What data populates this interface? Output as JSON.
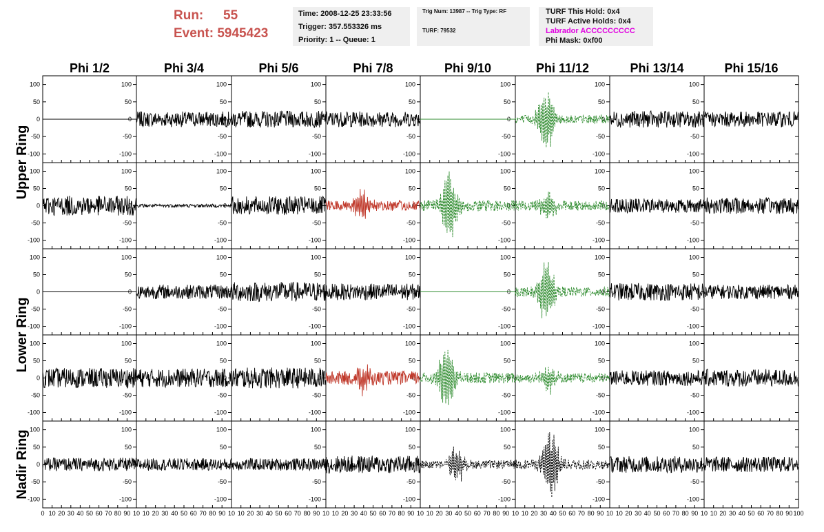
{
  "run": {
    "run_label": "Run:",
    "run_value": "55",
    "event_label": "Event:",
    "event_value": "5945423"
  },
  "info_time": {
    "line1": "Time: 2008-12-25 23:33:56",
    "line2": "Trigger: 357.553326 ms",
    "line3": "Priority: 1 -- Queue: 1"
  },
  "info_trig": {
    "line1": "Trig Num: 13987 -- Trig Type: RF",
    "line2": "TURF: 79532"
  },
  "info_turf": {
    "line1": "TURF This Hold: 0x4",
    "line2": "TURF Active Holds: 0x4",
    "line3": "Labrador ACCCCCCCCC",
    "line4": "Phi Mask: 0xf00"
  },
  "colors": {
    "header_red": "#c8534f",
    "trace_black": "#000000",
    "trace_red": "#c0392b",
    "trace_green": "#2e8b2e",
    "label_magenta": "#e000e0",
    "info_bg": "#efefef"
  },
  "chart_data": {
    "type": "line",
    "columns": [
      "Phi 1/2",
      "Phi 3/4",
      "Phi 5/6",
      "Phi 7/8",
      "Phi 9/10",
      "Phi 11/12",
      "Phi 13/14",
      "Phi 15/16"
    ],
    "ring_labels": [
      {
        "text": "Upper Ring",
        "rows": [
          0,
          1
        ]
      },
      {
        "text": "Lower Ring",
        "rows": [
          2,
          3
        ]
      },
      {
        "text": "Nadir Ring",
        "rows": [
          4
        ]
      }
    ],
    "xlim": [
      0,
      100
    ],
    "ylim": [
      -125,
      125
    ],
    "y_ticks": [
      100,
      50,
      0,
      -50,
      -100
    ],
    "x_ticks": [
      0,
      10,
      20,
      30,
      40,
      50,
      60,
      70,
      80,
      90,
      100
    ],
    "x_tick_labels_per_column": [
      [
        "0",
        "10",
        "20",
        "30",
        "40",
        "50",
        "60",
        "70",
        "80",
        "90",
        "10"
      ],
      [
        "10",
        "20",
        "30",
        "40",
        "50",
        "60",
        "70",
        "80",
        "90",
        "10"
      ],
      [
        "10",
        "20",
        "30",
        "40",
        "50",
        "60",
        "70",
        "80",
        "90",
        "10"
      ],
      [
        "10",
        "20",
        "30",
        "40",
        "50",
        "60",
        "70",
        "80",
        "90",
        "10"
      ],
      [
        "10",
        "20",
        "30",
        "40",
        "50",
        "60",
        "70",
        "80",
        "90",
        "10"
      ],
      [
        "10",
        "20",
        "30",
        "40",
        "50",
        "60",
        "70",
        "80",
        "90",
        "10"
      ],
      [
        "10",
        "20",
        "30",
        "40",
        "50",
        "60",
        "70",
        "80",
        "90",
        "10"
      ],
      [
        "10",
        "20",
        "30",
        "40",
        "50",
        "60",
        "70",
        "80",
        "90",
        "100"
      ]
    ],
    "panels": [
      [
        {
          "color": "black",
          "style": "flat",
          "amp": 0
        },
        {
          "color": "black",
          "style": "noise",
          "amp": 14
        },
        {
          "color": "black",
          "style": "noise",
          "amp": 15
        },
        {
          "color": "black",
          "style": "noise",
          "amp": 14
        },
        {
          "color": "green",
          "style": "flat",
          "amp": 0
        },
        {
          "color": "green",
          "style": "pulse",
          "amp": 12,
          "peak": 95,
          "center": 33
        },
        {
          "color": "black",
          "style": "noise",
          "amp": 15
        },
        {
          "color": "black",
          "style": "noise",
          "amp": 14
        }
      ],
      [
        {
          "color": "black",
          "style": "noise",
          "amp": 18
        },
        {
          "color": "black",
          "style": "noise",
          "amp": 3
        },
        {
          "color": "black",
          "style": "noise",
          "amp": 17
        },
        {
          "color": "red",
          "style": "pulse",
          "amp": 15,
          "peak": 48,
          "center": 38
        },
        {
          "color": "green",
          "style": "pulse",
          "amp": 16,
          "peak": 110,
          "center": 30
        },
        {
          "color": "green",
          "style": "pulse",
          "amp": 14,
          "peak": 40,
          "center": 35
        },
        {
          "color": "black",
          "style": "noise",
          "amp": 13
        },
        {
          "color": "black",
          "style": "noise",
          "amp": 15
        }
      ],
      [
        {
          "color": "black",
          "style": "flat",
          "amp": 0
        },
        {
          "color": "black",
          "style": "noise",
          "amp": 13
        },
        {
          "color": "black",
          "style": "noise",
          "amp": 18
        },
        {
          "color": "black",
          "style": "noise",
          "amp": 15
        },
        {
          "color": "green",
          "style": "flat",
          "amp": 0
        },
        {
          "color": "green",
          "style": "pulse",
          "amp": 14,
          "peak": 95,
          "center": 33
        },
        {
          "color": "black",
          "style": "noise",
          "amp": 16
        },
        {
          "color": "black",
          "style": "noise",
          "amp": 13
        }
      ],
      [
        {
          "color": "black",
          "style": "noise",
          "amp": 18
        },
        {
          "color": "black",
          "style": "noise",
          "amp": 17
        },
        {
          "color": "black",
          "style": "noise",
          "amp": 19
        },
        {
          "color": "red",
          "style": "pulse",
          "amp": 20,
          "peak": 40,
          "center": 40
        },
        {
          "color": "green",
          "style": "pulse",
          "amp": 16,
          "peak": 100,
          "center": 28
        },
        {
          "color": "green",
          "style": "pulse",
          "amp": 14,
          "peak": 40,
          "center": 35
        },
        {
          "color": "black",
          "style": "noise",
          "amp": 14
        },
        {
          "color": "black",
          "style": "noise",
          "amp": 16
        }
      ],
      [
        {
          "color": "black",
          "style": "noise",
          "amp": 12
        },
        {
          "color": "black",
          "style": "noise",
          "amp": 11
        },
        {
          "color": "black",
          "style": "noise",
          "amp": 11
        },
        {
          "color": "black",
          "style": "noise",
          "amp": 16
        },
        {
          "color": "black",
          "style": "pulse-dashed",
          "amp": 12,
          "peak": 55,
          "center": 38
        },
        {
          "color": "black",
          "style": "pulse-dashed",
          "amp": 14,
          "peak": 110,
          "center": 38
        },
        {
          "color": "black",
          "style": "noise",
          "amp": 15
        },
        {
          "color": "black",
          "style": "noise",
          "amp": 14
        }
      ]
    ]
  }
}
